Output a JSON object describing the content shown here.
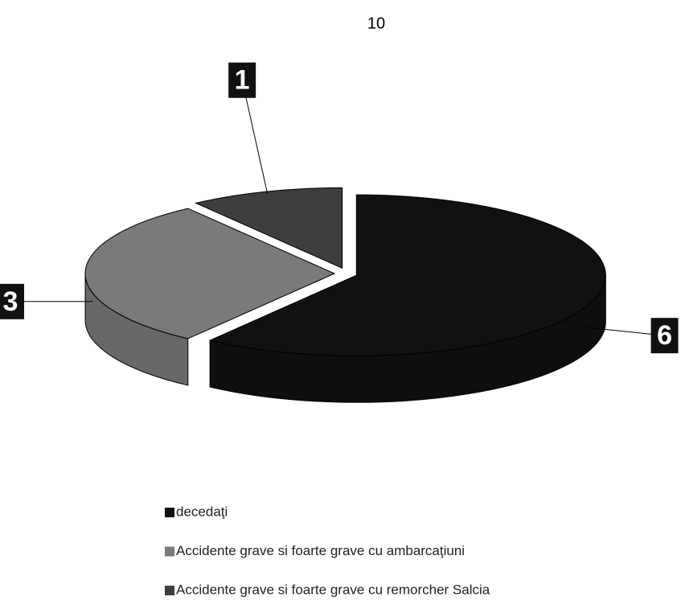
{
  "page_number": "10",
  "chart_data": {
    "type": "pie",
    "categories": [
      "decedaţi",
      "Accidente grave si foarte grave cu ambarcaţiuni",
      "Accidente grave si foarte grave cu remorcher Salcia"
    ],
    "values": [
      6,
      3,
      1
    ],
    "colors": [
      "#111111",
      "#7a7a7a",
      "#3e3e3e"
    ],
    "legend": "bottom"
  }
}
